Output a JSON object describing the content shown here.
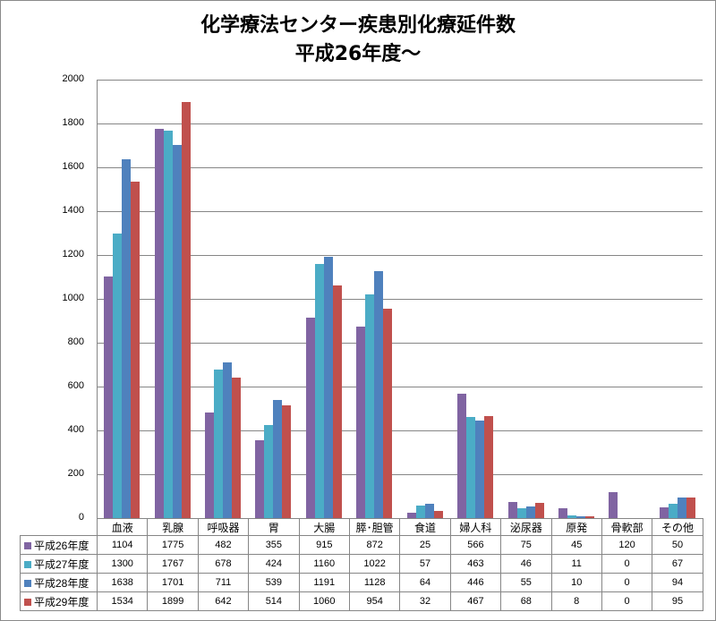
{
  "chart_data": {
    "type": "bar",
    "title": "化学療法センター疾患別化療延件数",
    "subtitle": "平成26年度～",
    "xlabel": "",
    "ylabel": "",
    "ylim": [
      0,
      2000
    ],
    "yticks": [
      0,
      200,
      400,
      600,
      800,
      1000,
      1200,
      1400,
      1600,
      1800,
      2000
    ],
    "grid": true,
    "legend_position": "data-table",
    "categories": [
      "血液",
      "乳腺",
      "呼吸器",
      "胃",
      "大腸",
      "膵･胆管",
      "食道",
      "婦人科",
      "泌尿器",
      "原発",
      "骨軟部",
      "その他"
    ],
    "series": [
      {
        "name": "平成26年度",
        "color": "#8064A2",
        "values": [
          1104,
          1775,
          482,
          355,
          915,
          872,
          25,
          566,
          75,
          45,
          120,
          50
        ]
      },
      {
        "name": "平成27年度",
        "color": "#4BACC6",
        "values": [
          1300,
          1767,
          678,
          424,
          1160,
          1022,
          57,
          463,
          46,
          11,
          0,
          67
        ]
      },
      {
        "name": "平成28年度",
        "color": "#4F81BD",
        "values": [
          1638,
          1701,
          711,
          539,
          1191,
          1128,
          64,
          446,
          55,
          10,
          0,
          94
        ]
      },
      {
        "name": "平成29年度",
        "color": "#C0504D",
        "values": [
          1534,
          1899,
          642,
          514,
          1060,
          954,
          32,
          467,
          68,
          8,
          0,
          95
        ]
      }
    ]
  },
  "title": {
    "line1": "化学療法センター疾患別化療延件数",
    "line2": "平成26年度～"
  }
}
